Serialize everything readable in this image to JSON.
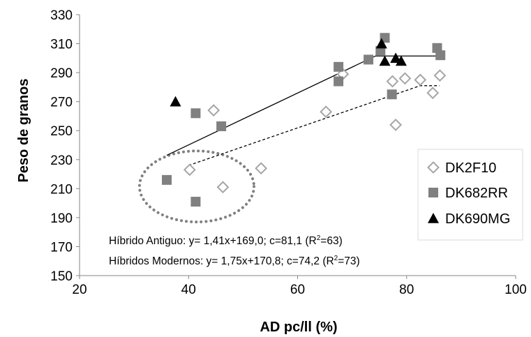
{
  "chart_data": {
    "type": "scatter",
    "xlabel": "AD pc/ll (%)",
    "ylabel": "Peso de granos",
    "xlim": [
      20,
      100
    ],
    "ylim": [
      150,
      330
    ],
    "xticks": [
      "20",
      "40",
      "60",
      "80",
      "100"
    ],
    "yticks": [
      "150",
      "170",
      "190",
      "210",
      "230",
      "250",
      "270",
      "290",
      "310",
      "330"
    ],
    "grid": false,
    "legend_position": "right",
    "series": [
      {
        "name": "DK2F10",
        "marker": "open-diamond",
        "color": "#a6a6a6",
        "points": [
          {
            "x": 40.2,
            "y": 223
          },
          {
            "x": 46.3,
            "y": 211
          },
          {
            "x": 53.3,
            "y": 224
          },
          {
            "x": 44.6,
            "y": 264
          },
          {
            "x": 65.2,
            "y": 263
          },
          {
            "x": 68.3,
            "y": 289
          },
          {
            "x": 77.4,
            "y": 284
          },
          {
            "x": 79.7,
            "y": 286
          },
          {
            "x": 82.5,
            "y": 285
          },
          {
            "x": 84.8,
            "y": 276
          },
          {
            "x": 86.1,
            "y": 288
          },
          {
            "x": 78.0,
            "y": 254
          }
        ]
      },
      {
        "name": "DK682RR",
        "marker": "filled-square",
        "color": "#808080",
        "points": [
          {
            "x": 36.0,
            "y": 216
          },
          {
            "x": 41.3,
            "y": 201
          },
          {
            "x": 41.3,
            "y": 262
          },
          {
            "x": 46.0,
            "y": 253
          },
          {
            "x": 67.5,
            "y": 294
          },
          {
            "x": 67.5,
            "y": 284
          },
          {
            "x": 73.0,
            "y": 299
          },
          {
            "x": 75.2,
            "y": 305
          },
          {
            "x": 76.0,
            "y": 314
          },
          {
            "x": 77.3,
            "y": 275
          },
          {
            "x": 85.6,
            "y": 307
          },
          {
            "x": 86.2,
            "y": 302
          }
        ]
      },
      {
        "name": "DK690MG",
        "marker": "filled-triangle",
        "color": "#000000",
        "points": [
          {
            "x": 37.6,
            "y": 270
          },
          {
            "x": 75.4,
            "y": 310
          },
          {
            "x": 76.0,
            "y": 298
          },
          {
            "x": 78.0,
            "y": 300
          },
          {
            "x": 79.0,
            "y": 298
          }
        ]
      }
    ],
    "fit_lines": [
      {
        "style": "solid",
        "color": "#000000",
        "x": [
          36,
          74.3,
          86
        ],
        "y": [
          233,
          301.5,
          301.5
        ]
      },
      {
        "style": "dashed",
        "color": "#000000",
        "x": [
          40,
          82.5,
          86
        ],
        "y": [
          226,
          281,
          281
        ]
      }
    ],
    "highlight_ellipse": {
      "style": "dotted",
      "color": "#808080",
      "cx": 41.5,
      "cy": 211.5,
      "rx": 10.5,
      "ry": 24.5
    },
    "annotations": [
      {
        "id": "antiguo",
        "text": "Híbrido Antiguo: y= 1,41x+169,0; c=81,1 (R",
        "sup": "2",
        "tail": "=63)"
      },
      {
        "id": "modernos",
        "text": "Híbridos Modernos: y= 1,75x+170,8; c=74,2 (R",
        "sup": "2",
        "tail": "=73)"
      }
    ]
  }
}
